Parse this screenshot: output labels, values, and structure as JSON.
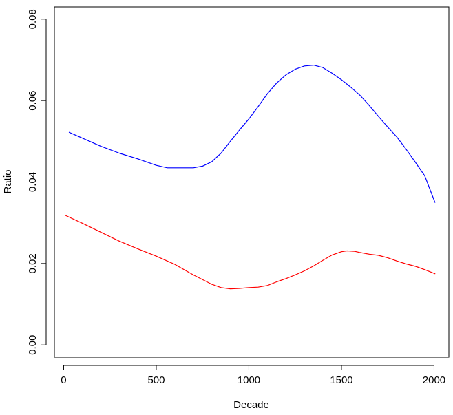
{
  "chart_data": {
    "type": "line",
    "title": "",
    "xlabel": "Decade",
    "ylabel": "Ratio",
    "xlim": [
      -50,
      2080
    ],
    "ylim": [
      -0.003,
      0.083
    ],
    "xticks": [
      0,
      500,
      1000,
      1500,
      2000
    ],
    "xtick_labels": [
      "0",
      "500",
      "1000",
      "1500",
      "2000"
    ],
    "yticks": [
      0.0,
      0.02,
      0.04,
      0.06,
      0.08
    ],
    "ytick_labels": [
      "0.00",
      "0.02",
      "0.04",
      "0.06",
      "0.08"
    ],
    "grid": false,
    "series": [
      {
        "color": "#0000ff",
        "x": [
          30,
          100,
          200,
          300,
          400,
          500,
          560,
          600,
          650,
          700,
          750,
          800,
          850,
          900,
          950,
          1000,
          1050,
          1100,
          1150,
          1200,
          1250,
          1300,
          1350,
          1400,
          1450,
          1500,
          1550,
          1600,
          1650,
          1700,
          1750,
          1800,
          1850,
          1900,
          1950,
          2005
        ],
        "values": [
          0.0522,
          0.0508,
          0.0488,
          0.0471,
          0.0457,
          0.0441,
          0.0435,
          0.0435,
          0.0435,
          0.0435,
          0.0439,
          0.045,
          0.0471,
          0.05,
          0.0528,
          0.0555,
          0.0585,
          0.0617,
          0.0643,
          0.0663,
          0.0677,
          0.0685,
          0.0687,
          0.0681,
          0.0667,
          0.0651,
          0.0633,
          0.0613,
          0.0588,
          0.0561,
          0.0535,
          0.051,
          0.048,
          0.0448,
          0.0415,
          0.035
        ]
      },
      {
        "color": "#ff0000",
        "x": [
          10,
          100,
          200,
          300,
          400,
          500,
          600,
          700,
          800,
          850,
          900,
          950,
          1000,
          1050,
          1100,
          1150,
          1200,
          1250,
          1300,
          1350,
          1400,
          1450,
          1500,
          1530,
          1570,
          1600,
          1650,
          1700,
          1750,
          1800,
          1850,
          1900,
          1950,
          2005
        ],
        "values": [
          0.0318,
          0.0299,
          0.0277,
          0.0255,
          0.0236,
          0.0218,
          0.0198,
          0.0172,
          0.0149,
          0.0141,
          0.0138,
          0.0139,
          0.0141,
          0.0142,
          0.0146,
          0.0155,
          0.0163,
          0.0172,
          0.0182,
          0.0194,
          0.0208,
          0.0221,
          0.0229,
          0.0231,
          0.023,
          0.0227,
          0.0223,
          0.022,
          0.0214,
          0.0206,
          0.0199,
          0.0193,
          0.0185,
          0.0175
        ]
      }
    ]
  }
}
